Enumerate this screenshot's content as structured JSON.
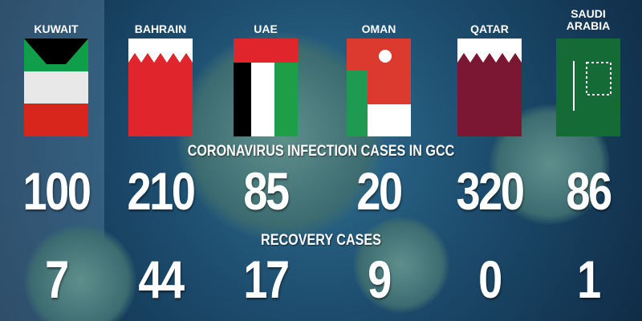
{
  "headings": {
    "cases": "CORONAVIRUS INFECTION CASES IN GCC",
    "recovery": "RECOVERY CASES"
  },
  "countries": [
    {
      "name": "KUWAIT",
      "cases": "100",
      "recovered": "7"
    },
    {
      "name": "BAHRAIN",
      "cases": "210",
      "recovered": "44"
    },
    {
      "name": "UAE",
      "cases": "85",
      "recovered": "17"
    },
    {
      "name": "OMAN",
      "cases": "20",
      "recovered": "9"
    },
    {
      "name": "QATAR",
      "cases": "320",
      "recovered": "0"
    },
    {
      "name": "SAUDI ARABIA",
      "cases": "86",
      "recovered": "1"
    }
  ]
}
